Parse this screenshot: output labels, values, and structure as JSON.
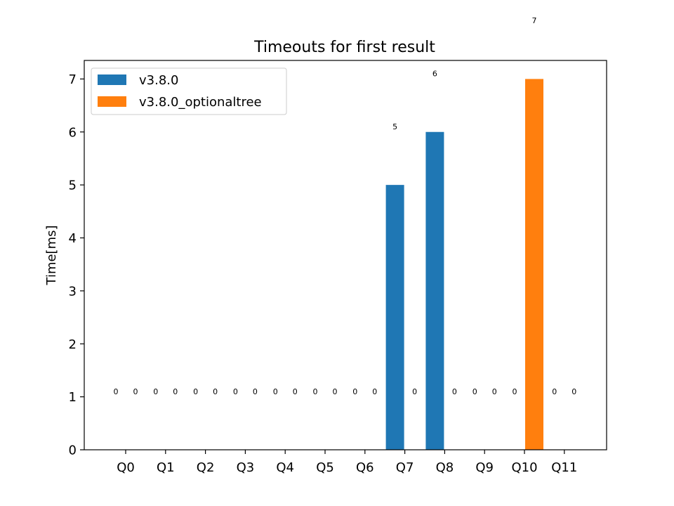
{
  "chart_data": {
    "type": "bar",
    "title": "Timeouts for first result",
    "xlabel": "",
    "ylabel": "Time[ms]",
    "categories": [
      "Q0",
      "Q1",
      "Q2",
      "Q3",
      "Q4",
      "Q5",
      "Q6",
      "Q7",
      "Q8",
      "Q9",
      "Q10",
      "Q11"
    ],
    "series": [
      {
        "name": "v3.8.0",
        "color": "#1f77b4",
        "values": [
          0,
          0,
          0,
          0,
          0,
          0,
          0,
          5,
          6,
          0,
          0,
          0
        ]
      },
      {
        "name": "v3.8.0_optionaltree",
        "color": "#ff7f0e",
        "values": [
          0,
          0,
          0,
          0,
          0,
          0,
          0,
          0,
          0,
          0,
          7,
          0
        ]
      }
    ],
    "ylim": [
      0,
      7.35
    ],
    "yticks": [
      0,
      1,
      2,
      3,
      4,
      5,
      6,
      7
    ],
    "grid": false,
    "legend": "top-left"
  }
}
